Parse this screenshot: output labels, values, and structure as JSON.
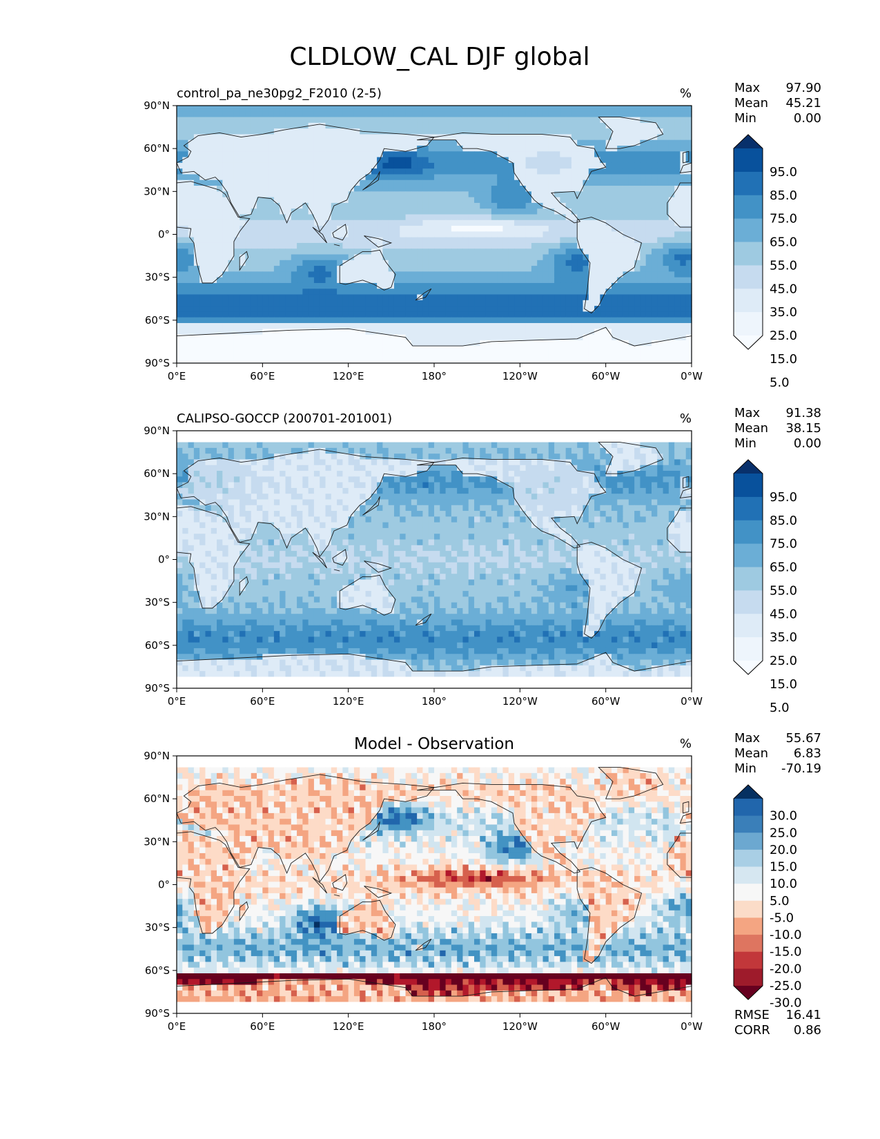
{
  "title": "CLDLOW_CAL DJF global",
  "lat_labels": [
    "90°N",
    "60°N",
    "30°N",
    "0°",
    "30°S",
    "60°S",
    "90°S"
  ],
  "lon_labels": [
    "0°E",
    "60°E",
    "120°E",
    "180°",
    "120°W",
    "60°W",
    "0°W"
  ],
  "stat_labels": {
    "max": "Max",
    "mean": "Mean",
    "min": "Min",
    "rmse": "RMSE",
    "corr": "CORR"
  },
  "panels": [
    {
      "title": "control_pa_ne30pg2_F2010 (2-5)",
      "units": "%",
      "stats": {
        "max": "97.90",
        "mean": "45.21",
        "min": "0.00"
      },
      "colorbar": {
        "labels": [
          "95.0",
          "85.0",
          "75.0",
          "65.0",
          "55.0",
          "45.0",
          "35.0",
          "25.0",
          "15.0",
          "5.0"
        ],
        "colors": [
          "#08306b",
          "#08519c",
          "#2171b5",
          "#4292c6",
          "#6baed6",
          "#9ecae1",
          "#c6dbef",
          "#deebf7",
          "#eef5fc",
          "#f7fbff"
        ]
      }
    },
    {
      "title": "CALIPSO-GOCCP (200701-201001)",
      "units": "%",
      "stats": {
        "max": "91.38",
        "mean": "38.15",
        "min": "0.00"
      },
      "colorbar": {
        "labels": [
          "95.0",
          "85.0",
          "75.0",
          "65.0",
          "55.0",
          "45.0",
          "35.0",
          "25.0",
          "15.0",
          "5.0"
        ],
        "colors": [
          "#08306b",
          "#08519c",
          "#2171b5",
          "#4292c6",
          "#6baed6",
          "#9ecae1",
          "#c6dbef",
          "#deebf7",
          "#eef5fc",
          "#f7fbff"
        ]
      }
    },
    {
      "title": "Model - Observation",
      "units": "%",
      "stats": {
        "max": "55.67",
        "mean": "6.83",
        "min": "-70.19",
        "rmse": "16.41",
        "corr": "0.86"
      },
      "colorbar": {
        "labels": [
          "30.0",
          "25.0",
          "20.0",
          "15.0",
          "10.0",
          "5.0",
          "-5.0",
          "-10.0",
          "-15.0",
          "-20.0",
          "-25.0",
          "-30.0"
        ],
        "colors": [
          "#053061",
          "#2166ac",
          "#3a7fb9",
          "#6ca8d0",
          "#a9cfe5",
          "#d6e7f1",
          "#f7f7f7",
          "#fbdcc8",
          "#f4a582",
          "#de7560",
          "#c2373a",
          "#9e1b2b",
          "#67001f"
        ]
      }
    }
  ],
  "palette": {
    "blues": [
      "#f7fbff",
      "#deebf7",
      "#c6dbef",
      "#9ecae1",
      "#6baed6",
      "#4292c6",
      "#2171b5",
      "#08519c",
      "#08306b"
    ],
    "diverging": [
      "#67001f",
      "#b2182b",
      "#d6604d",
      "#f4a582",
      "#fddbc7",
      "#f7f7f7",
      "#d1e5f0",
      "#92c5de",
      "#4393c3",
      "#2166ac",
      "#053061"
    ]
  }
}
